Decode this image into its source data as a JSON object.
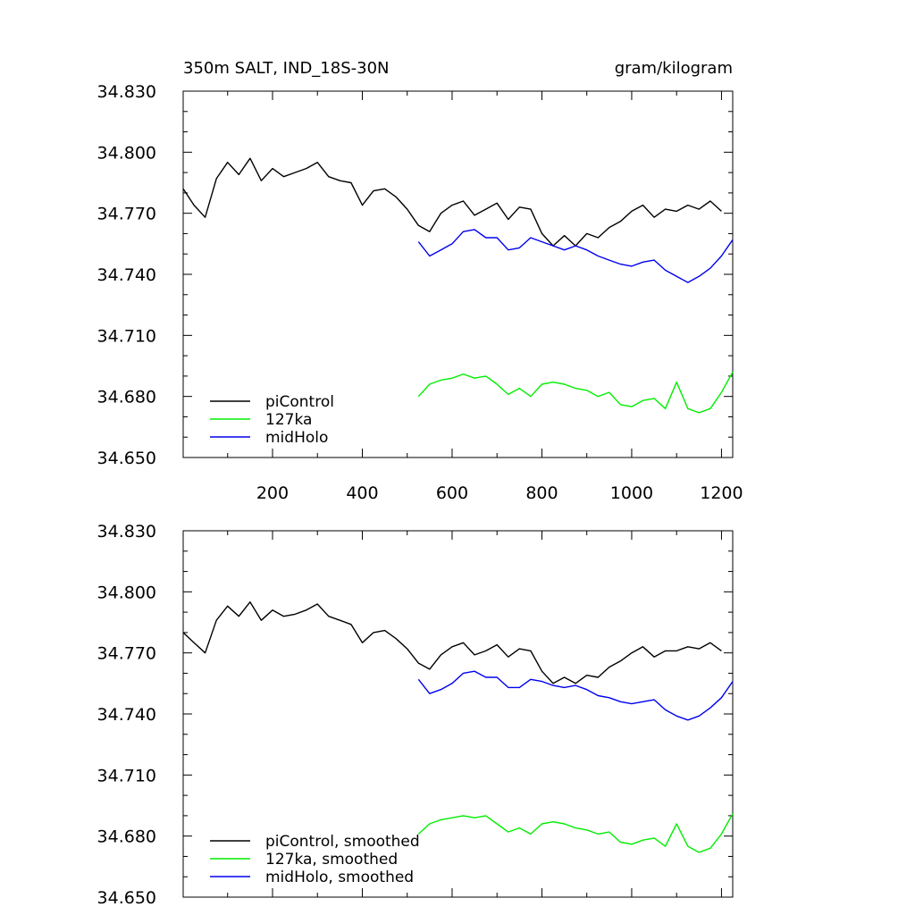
{
  "title_left": "350m SALT, IND_18S-30N",
  "title_right": "gram/kilogram",
  "colors": {
    "piControl": "#000000",
    "127ka": "#00ee00",
    "midHolo": "#0000ee"
  },
  "chart_data": [
    {
      "type": "line",
      "panel": "raw",
      "xlim": [
        1,
        1225
      ],
      "ylim": [
        34.65,
        34.83
      ],
      "xticks": [
        200,
        400,
        600,
        800,
        1000,
        1200
      ],
      "xtick_labels": [
        "200",
        "400",
        "600",
        "800",
        "1000",
        "1200"
      ],
      "yticks": [
        34.65,
        34.68,
        34.71,
        34.74,
        34.77,
        34.8,
        34.83
      ],
      "ytick_labels": [
        "34.650",
        "34.680",
        "34.710",
        "34.740",
        "34.770",
        "34.800",
        "34.830"
      ],
      "legend_placement": "bottom-left",
      "series": [
        {
          "name": "piControl",
          "x": [
            1,
            25,
            50,
            75,
            100,
            125,
            150,
            175,
            200,
            225,
            250,
            275,
            300,
            325,
            350,
            375,
            400,
            425,
            450,
            475,
            500,
            525,
            550,
            575,
            600,
            625,
            650,
            675,
            700,
            725,
            750,
            775,
            800,
            825,
            850,
            875,
            900,
            925,
            950,
            975,
            1000,
            1025,
            1050,
            1075,
            1100,
            1125,
            1150,
            1175,
            1200
          ],
          "y": [
            34.782,
            34.774,
            34.768,
            34.787,
            34.795,
            34.789,
            34.797,
            34.786,
            34.792,
            34.788,
            34.79,
            34.792,
            34.795,
            34.788,
            34.786,
            34.785,
            34.774,
            34.781,
            34.782,
            34.778,
            34.772,
            34.764,
            34.761,
            34.77,
            34.774,
            34.776,
            34.769,
            34.772,
            34.775,
            34.767,
            34.773,
            34.772,
            34.76,
            34.754,
            34.759,
            34.754,
            34.76,
            34.758,
            34.763,
            34.766,
            34.771,
            34.774,
            34.768,
            34.772,
            34.771,
            34.774,
            34.772,
            34.776,
            34.771
          ]
        },
        {
          "name": "127ka",
          "x": [
            525,
            550,
            575,
            600,
            625,
            650,
            675,
            700,
            725,
            750,
            775,
            800,
            825,
            850,
            875,
            900,
            925,
            950,
            975,
            1000,
            1025,
            1050,
            1075,
            1100,
            1125,
            1150,
            1175,
            1200,
            1225
          ],
          "y": [
            34.68,
            34.686,
            34.688,
            34.689,
            34.691,
            34.689,
            34.69,
            34.686,
            34.681,
            34.684,
            34.68,
            34.686,
            34.687,
            34.686,
            34.684,
            34.683,
            34.68,
            34.682,
            34.676,
            34.675,
            34.678,
            34.679,
            34.674,
            34.687,
            34.674,
            34.672,
            34.674,
            34.682,
            34.692
          ]
        },
        {
          "name": "midHolo",
          "x": [
            525,
            550,
            575,
            600,
            625,
            650,
            675,
            700,
            725,
            750,
            775,
            800,
            825,
            850,
            875,
            900,
            925,
            950,
            975,
            1000,
            1025,
            1050,
            1075,
            1100,
            1125,
            1150,
            1175,
            1200,
            1225
          ],
          "y": [
            34.756,
            34.749,
            34.752,
            34.755,
            34.761,
            34.762,
            34.758,
            34.758,
            34.752,
            34.753,
            34.758,
            34.756,
            34.754,
            34.752,
            34.754,
            34.752,
            34.749,
            34.747,
            34.745,
            34.744,
            34.746,
            34.747,
            34.742,
            34.739,
            34.736,
            34.739,
            34.743,
            34.749,
            34.757
          ]
        }
      ]
    },
    {
      "type": "line",
      "panel": "smoothed",
      "xlim": [
        1,
        1225
      ],
      "ylim": [
        34.65,
        34.83
      ],
      "yticks": [
        34.65,
        34.68,
        34.71,
        34.74,
        34.77,
        34.8,
        34.83
      ],
      "ytick_labels": [
        "34.650",
        "34.680",
        "34.710",
        "34.740",
        "34.770",
        "34.800",
        "34.830"
      ],
      "legend_placement": "bottom-left",
      "series": [
        {
          "name": "piControl, smoothed",
          "x": [
            1,
            25,
            50,
            75,
            100,
            125,
            150,
            175,
            200,
            225,
            250,
            275,
            300,
            325,
            350,
            375,
            400,
            425,
            450,
            475,
            500,
            525,
            550,
            575,
            600,
            625,
            650,
            675,
            700,
            725,
            750,
            775,
            800,
            825,
            850,
            875,
            900,
            925,
            950,
            975,
            1000,
            1025,
            1050,
            1075,
            1100,
            1125,
            1150,
            1175,
            1200
          ],
          "y": [
            34.78,
            34.775,
            34.77,
            34.786,
            34.793,
            34.788,
            34.795,
            34.786,
            34.791,
            34.788,
            34.789,
            34.791,
            34.794,
            34.788,
            34.786,
            34.784,
            34.775,
            34.78,
            34.781,
            34.777,
            34.772,
            34.765,
            34.762,
            34.769,
            34.773,
            34.775,
            34.769,
            34.771,
            34.774,
            34.768,
            34.772,
            34.771,
            34.761,
            34.755,
            34.758,
            34.755,
            34.759,
            34.758,
            34.763,
            34.766,
            34.77,
            34.773,
            34.768,
            34.771,
            34.771,
            34.773,
            34.772,
            34.775,
            34.771
          ]
        },
        {
          "name": "127ka, smoothed",
          "x": [
            525,
            550,
            575,
            600,
            625,
            650,
            675,
            700,
            725,
            750,
            775,
            800,
            825,
            850,
            875,
            900,
            925,
            950,
            975,
            1000,
            1025,
            1050,
            1075,
            1100,
            1125,
            1150,
            1175,
            1200,
            1225
          ],
          "y": [
            34.681,
            34.686,
            34.688,
            34.689,
            34.69,
            34.689,
            34.69,
            34.686,
            34.682,
            34.684,
            34.681,
            34.686,
            34.687,
            34.686,
            34.684,
            34.683,
            34.681,
            34.682,
            34.677,
            34.676,
            34.678,
            34.679,
            34.675,
            34.686,
            34.675,
            34.672,
            34.674,
            34.681,
            34.691
          ]
        },
        {
          "name": "midHolo, smoothed",
          "x": [
            525,
            550,
            575,
            600,
            625,
            650,
            675,
            700,
            725,
            750,
            775,
            800,
            825,
            850,
            875,
            900,
            925,
            950,
            975,
            1000,
            1025,
            1050,
            1075,
            1100,
            1125,
            1150,
            1175,
            1200,
            1225
          ],
          "y": [
            34.757,
            34.75,
            34.752,
            34.755,
            34.76,
            34.761,
            34.758,
            34.758,
            34.753,
            34.753,
            34.757,
            34.756,
            34.754,
            34.753,
            34.754,
            34.752,
            34.749,
            34.748,
            34.746,
            34.745,
            34.746,
            34.747,
            34.742,
            34.739,
            34.737,
            34.739,
            34.743,
            34.748,
            34.756
          ]
        }
      ]
    }
  ]
}
